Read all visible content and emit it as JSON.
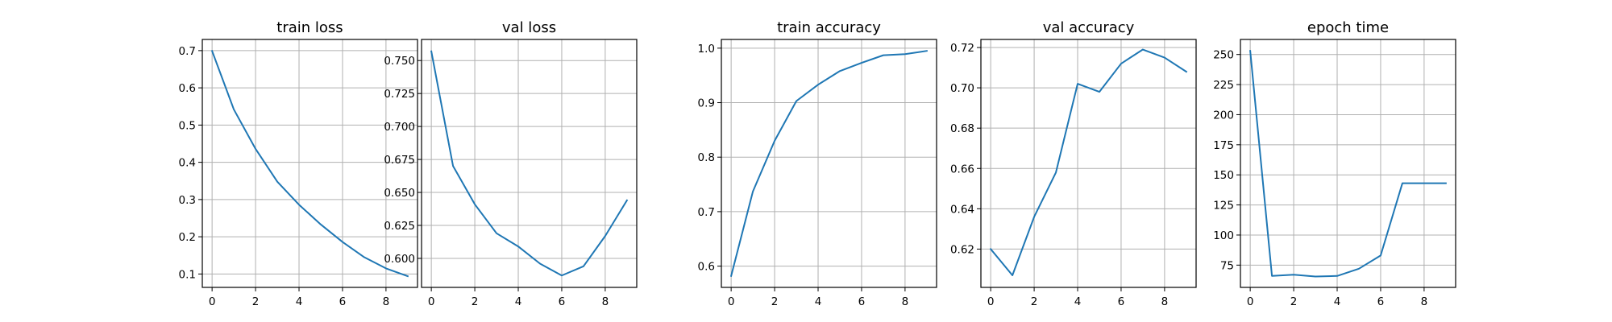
{
  "chart_data": [
    {
      "type": "line",
      "title": "train loss",
      "x": [
        0,
        1,
        2,
        3,
        4,
        5,
        6,
        7,
        8,
        9
      ],
      "series": [
        {
          "values": [
            0.699,
            0.542,
            0.436,
            0.348,
            0.286,
            0.233,
            0.186,
            0.145,
            0.115,
            0.094
          ]
        }
      ],
      "xlim": [
        -0.45,
        9.45
      ],
      "ylim": [
        0.064,
        0.73
      ],
      "xticks": [
        0,
        2,
        4,
        6,
        8
      ],
      "xtick_labels": [
        "0",
        "2",
        "4",
        "6",
        "8"
      ],
      "yticks": [
        0.1,
        0.2,
        0.3,
        0.4,
        0.5,
        0.6,
        0.7
      ],
      "ytick_labels": [
        "0.1",
        "0.2",
        "0.3",
        "0.4",
        "0.5",
        "0.6",
        "0.7"
      ],
      "grid": true
    },
    {
      "type": "line",
      "title": "val loss",
      "x": [
        0,
        1,
        2,
        3,
        4,
        5,
        6,
        7,
        8,
        9
      ],
      "series": [
        {
          "values": [
            0.757,
            0.67,
            0.641,
            0.619,
            0.609,
            0.596,
            0.587,
            0.594,
            0.617,
            0.644
          ]
        }
      ],
      "xlim": [
        -0.45,
        9.45
      ],
      "ylim": [
        0.578,
        0.766
      ],
      "xticks": [
        0,
        2,
        4,
        6,
        8
      ],
      "xtick_labels": [
        "0",
        "2",
        "4",
        "6",
        "8"
      ],
      "yticks": [
        0.6,
        0.625,
        0.65,
        0.675,
        0.7,
        0.725,
        0.75
      ],
      "ytick_labels": [
        "0.600",
        "0.625",
        "0.650",
        "0.675",
        "0.700",
        "0.725",
        "0.750"
      ],
      "grid": true
    },
    {
      "type": "line",
      "title": "train accuracy",
      "x": [
        0,
        1,
        2,
        3,
        4,
        5,
        6,
        7,
        8,
        9
      ],
      "series": [
        {
          "values": [
            0.582,
            0.737,
            0.83,
            0.903,
            0.933,
            0.958,
            0.973,
            0.987,
            0.989,
            0.995
          ]
        }
      ],
      "xlim": [
        -0.45,
        9.45
      ],
      "ylim": [
        0.561,
        1.016
      ],
      "xticks": [
        0,
        2,
        4,
        6,
        8
      ],
      "xtick_labels": [
        "0",
        "2",
        "4",
        "6",
        "8"
      ],
      "yticks": [
        0.6,
        0.7,
        0.8,
        0.9,
        1.0
      ],
      "ytick_labels": [
        "0.6",
        "0.7",
        "0.8",
        "0.9",
        "1.0"
      ],
      "grid": true
    },
    {
      "type": "line",
      "title": "val accuracy",
      "x": [
        0,
        1,
        2,
        3,
        4,
        5,
        6,
        7,
        8,
        9
      ],
      "series": [
        {
          "values": [
            0.62,
            0.607,
            0.636,
            0.658,
            0.702,
            0.698,
            0.712,
            0.719,
            0.715,
            0.708
          ]
        }
      ],
      "xlim": [
        -0.45,
        9.45
      ],
      "ylim": [
        0.601,
        0.724
      ],
      "xticks": [
        0,
        2,
        4,
        6,
        8
      ],
      "xtick_labels": [
        "0",
        "2",
        "4",
        "6",
        "8"
      ],
      "yticks": [
        0.62,
        0.64,
        0.66,
        0.68,
        0.7,
        0.72
      ],
      "ytick_labels": [
        "0.62",
        "0.64",
        "0.66",
        "0.68",
        "0.70",
        "0.72"
      ],
      "grid": true
    },
    {
      "type": "line",
      "title": "epoch time",
      "x": [
        0,
        1,
        2,
        3,
        4,
        5,
        6,
        7,
        8,
        9
      ],
      "series": [
        {
          "values": [
            253,
            66,
            67,
            65.5,
            66,
            72,
            83,
            143,
            143,
            143
          ]
        }
      ],
      "xlim": [
        -0.45,
        9.45
      ],
      "ylim": [
        56.5,
        262.5
      ],
      "xticks": [
        0,
        2,
        4,
        6,
        8
      ],
      "xtick_labels": [
        "0",
        "2",
        "4",
        "6",
        "8"
      ],
      "yticks": [
        75,
        100,
        125,
        150,
        175,
        200,
        225,
        250
      ],
      "ytick_labels": [
        "75",
        "100",
        "125",
        "150",
        "175",
        "200",
        "225",
        "250"
      ],
      "grid": true
    }
  ],
  "colors": {
    "series": "#1f77b4",
    "grid": "#b0b0b0",
    "frame": "#000000"
  }
}
